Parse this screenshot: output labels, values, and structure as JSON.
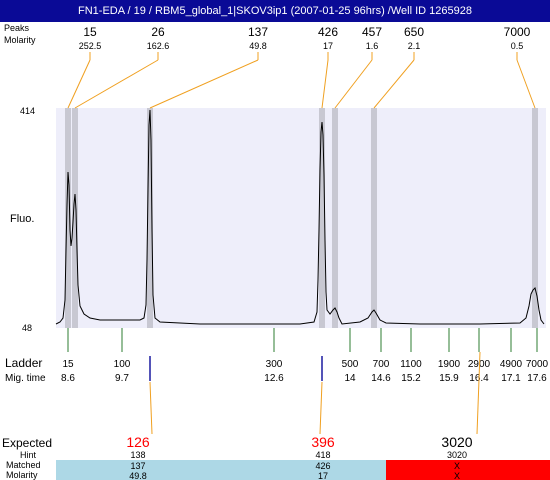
{
  "title": "FN1-EDA / 19 / RBM5_global_1|SKOV3ip1 (2007-01-25 96hrs) /Well ID 1265928",
  "labels": {
    "peaks": "Peaks",
    "molarity": "Molarity",
    "fluo": "Fluo.",
    "ladder": "Ladder",
    "mig_time": "Mig. time",
    "expected": "Expected",
    "hint": "Hint",
    "matched": "Matched",
    "molarity_row": "Molarity"
  },
  "chart_data": {
    "type": "line",
    "y_ticks": [
      "414",
      "48"
    ],
    "ylim": [
      48,
      414
    ],
    "peaks": [
      {
        "size": "15",
        "molarity": "252.5"
      },
      {
        "size": "26",
        "molarity": "162.6"
      },
      {
        "size": "137",
        "molarity": "49.8"
      },
      {
        "size": "426",
        "molarity": "17"
      },
      {
        "size": "457",
        "molarity": "1.6"
      },
      {
        "size": "650",
        "molarity": "2.1"
      },
      {
        "size": "7000",
        "molarity": "0.5"
      }
    ],
    "ladder": [
      {
        "size": "15",
        "time": "8.6"
      },
      {
        "size": "100",
        "time": "9.7"
      },
      {
        "size": "300",
        "time": "12.6"
      },
      {
        "size": "500",
        "time": "14"
      },
      {
        "size": "700",
        "time": "14.6"
      },
      {
        "size": "1100",
        "time": "15.2"
      },
      {
        "size": "1900",
        "time": "15.9"
      },
      {
        "size": "2900",
        "time": "16.4"
      },
      {
        "size": "4900",
        "time": "17.1"
      },
      {
        "size": "7000",
        "time": "17.6"
      }
    ],
    "expected": [
      {
        "expected": "126",
        "hint": "138",
        "matched": "137",
        "molarity": "49.8",
        "color": "#ff0000",
        "status": "matched"
      },
      {
        "expected": "396",
        "hint": "418",
        "matched": "426",
        "molarity": "17",
        "color": "#ff0000",
        "status": "matched"
      },
      {
        "expected": "3020",
        "hint": "3020",
        "matched": "X",
        "molarity": "X",
        "color": "#000000",
        "status": "missing"
      }
    ],
    "colors": {
      "plot_bg": "#eeeefa",
      "peak_band": "#c8c8d2",
      "trace": "#000000",
      "leader": "#f0a020",
      "ladder_tick": "#2e7d32",
      "expected_tick": "#1a1aa0",
      "matched_bg": "#add8e6",
      "missing_bg": "#ff0000",
      "title_bg": "#0a0a96"
    }
  }
}
